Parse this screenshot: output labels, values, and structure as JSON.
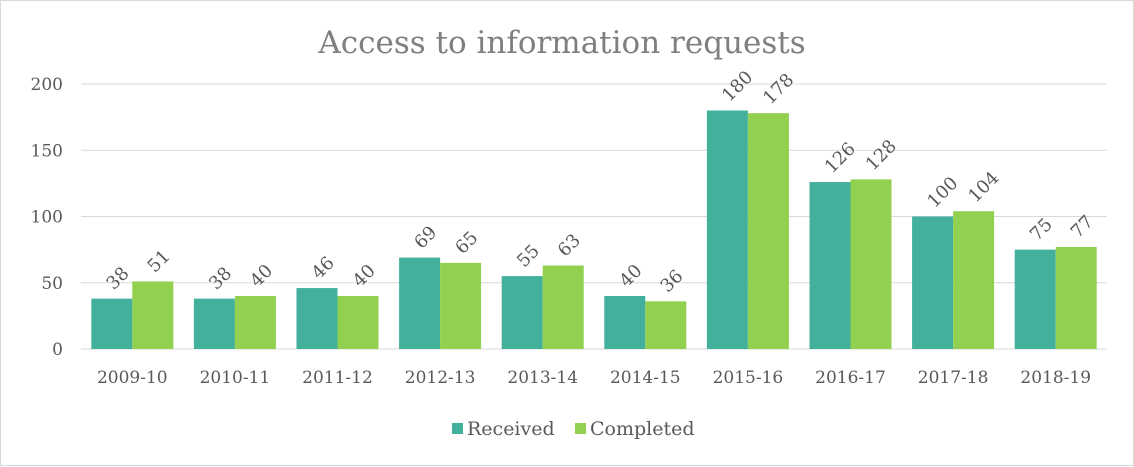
{
  "chart_data": {
    "type": "bar",
    "title": "Access to information requests",
    "categories": [
      "2009-10",
      "2010-11",
      "2011-12",
      "2012-13",
      "2013-14",
      "2014-15",
      "2015-16",
      "2016-17",
      "2017-18",
      "2018-19"
    ],
    "series": [
      {
        "name": "Received",
        "color": "#43b09c",
        "values": [
          38,
          38,
          46,
          69,
          55,
          40,
          180,
          126,
          100,
          75
        ]
      },
      {
        "name": "Completed",
        "color": "#92d050",
        "values": [
          51,
          40,
          40,
          65,
          63,
          36,
          178,
          128,
          104,
          77
        ]
      }
    ],
    "ylim": [
      0,
      200
    ],
    "yticks": [
      0,
      50,
      100,
      150,
      200
    ],
    "grid": true,
    "legend_position": "bottom"
  }
}
